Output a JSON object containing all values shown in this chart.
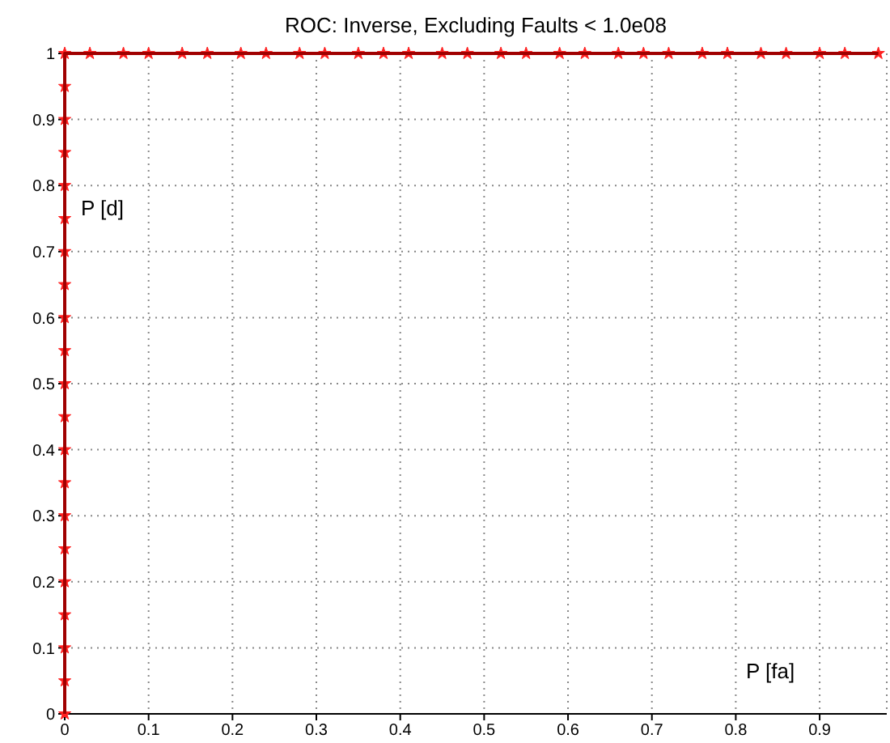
{
  "chart_data": {
    "type": "line",
    "title": "ROC: Inverse, Excluding Faults < 1.0e08",
    "xlabel": "P [fa]",
    "ylabel": "P [d]",
    "x": [
      0,
      0,
      0,
      0,
      0,
      0,
      0,
      0,
      0,
      0,
      0,
      0,
      0,
      0,
      0,
      0,
      0,
      0,
      0,
      0,
      0,
      0.03,
      0.07,
      0.1,
      0.14,
      0.17,
      0.21,
      0.24,
      0.28,
      0.31,
      0.35,
      0.38,
      0.41,
      0.45,
      0.48,
      0.52,
      0.55,
      0.59,
      0.62,
      0.66,
      0.69,
      0.72,
      0.76,
      0.79,
      0.83,
      0.86,
      0.9,
      0.93,
      0.97
    ],
    "series": [
      {
        "color": "#a00000",
        "values": [
          0,
          0.05,
          0.1,
          0.15,
          0.2,
          0.25,
          0.3,
          0.35,
          0.4,
          0.45,
          0.5,
          0.55,
          0.6,
          0.65,
          0.7,
          0.75,
          0.8,
          0.85,
          0.9,
          0.95,
          1,
          1,
          1,
          1,
          1,
          1,
          1,
          1,
          1,
          1,
          1,
          1,
          1,
          1,
          1,
          1,
          1,
          1,
          1,
          1,
          1,
          1,
          1,
          1,
          1,
          1,
          1,
          1,
          1
        ]
      }
    ],
    "xlim": [
      0,
      0.98
    ],
    "xticks": [
      0,
      0.1,
      0.2,
      0.3,
      0.4,
      0.5,
      0.6,
      0.7,
      0.8,
      0.9
    ],
    "ylim": [
      0,
      1
    ],
    "yticks": [
      0,
      0.1,
      0.2,
      0.3,
      0.4,
      0.5,
      0.6,
      0.7,
      0.8,
      0.9,
      1
    ],
    "grid": true,
    "marker": "star",
    "line_style": "solid"
  }
}
